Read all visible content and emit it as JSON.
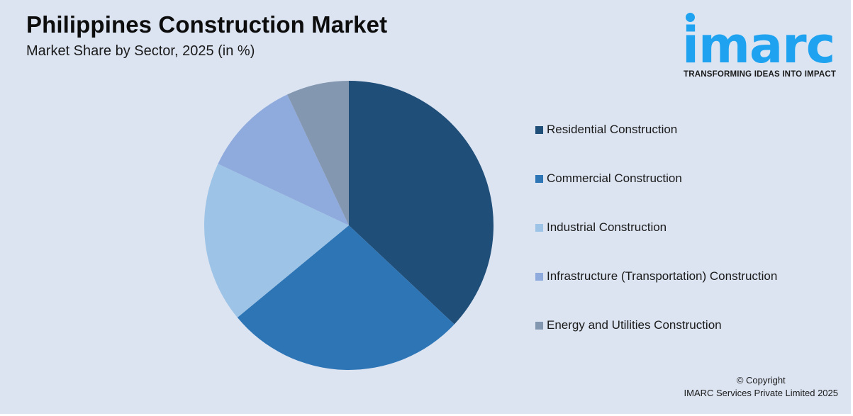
{
  "header": {
    "title": "Philippines Construction Market",
    "subtitle": "Market Share by Sector, 2025 (in %)"
  },
  "logo": {
    "wordmark": "imarc",
    "tagline": "TRANSFORMING IDEAS INTO IMPACT",
    "color": "#1fa3f0"
  },
  "footer": {
    "line1": "© Copyright",
    "line2": "IMARC Services Private Limited 2025"
  },
  "chart_data": {
    "type": "pie",
    "title": "Philippines Construction Market",
    "subtitle": "Market Share by Sector, 2025 (in %)",
    "categories": [
      "Residential Construction",
      "Commercial Construction",
      "Industrial Construction",
      "Infrastructure (Transportation) Construction",
      "Energy and Utilities Construction"
    ],
    "values": [
      37,
      27,
      18,
      11,
      7
    ],
    "colors": [
      "#1f4e79",
      "#2e75b6",
      "#9dc3e6",
      "#8faadc",
      "#8497b0"
    ],
    "start_angle": "12 o'clock, clockwise",
    "legend_position": "right",
    "data_labels": false
  }
}
